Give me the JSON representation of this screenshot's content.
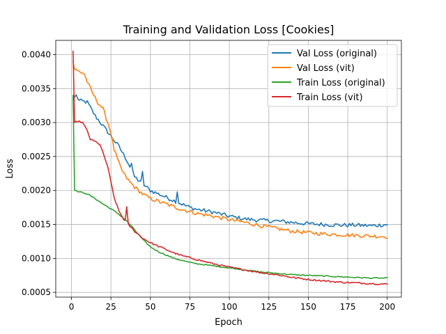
{
  "chart_data": {
    "type": "line",
    "title": "Training and Validation Loss [Cookies]",
    "xlabel": "Epoch",
    "ylabel": "Loss",
    "xlim": [
      -9.95,
      208.95
    ],
    "ylim": [
      0.00043,
      0.00421
    ],
    "x_ticks": [
      0,
      25,
      50,
      75,
      100,
      125,
      150,
      175,
      200
    ],
    "x_tick_labels": [
      "0",
      "25",
      "50",
      "75",
      "100",
      "125",
      "150",
      "175",
      "200"
    ],
    "y_ticks": [
      0.0005,
      0.001,
      0.0015,
      0.002,
      0.0025,
      0.003,
      0.0035,
      0.004
    ],
    "y_tick_labels": [
      "0.0005",
      "0.0010",
      "0.0015",
      "0.0020",
      "0.0025",
      "0.0030",
      "0.0035",
      "0.0040"
    ],
    "grid": true,
    "legend_position": "top-right",
    "x_range": [
      1,
      200
    ],
    "series": [
      {
        "name": "Val Loss (original)",
        "color": "#1f77b4",
        "anchors": [
          [
            1,
            0.00335
          ],
          [
            3,
            0.0034
          ],
          [
            5,
            0.00332
          ],
          [
            10,
            0.0033
          ],
          [
            15,
            0.0031
          ],
          [
            20,
            0.00295
          ],
          [
            25,
            0.0028
          ],
          [
            30,
            0.00265
          ],
          [
            35,
            0.00245
          ],
          [
            40,
            0.0022
          ],
          [
            45,
            0.0021
          ],
          [
            50,
            0.002
          ],
          [
            55,
            0.00195
          ],
          [
            60,
            0.0019
          ],
          [
            65,
            0.00185
          ],
          [
            70,
            0.0018
          ],
          [
            75,
            0.00175
          ],
          [
            80,
            0.00172
          ],
          [
            90,
            0.00168
          ],
          [
            100,
            0.00162
          ],
          [
            110,
            0.00158
          ],
          [
            120,
            0.00156
          ],
          [
            130,
            0.00155
          ],
          [
            140,
            0.00153
          ],
          [
            150,
            0.00151
          ],
          [
            160,
            0.0015
          ],
          [
            170,
            0.00149
          ],
          [
            180,
            0.00149
          ],
          [
            190,
            0.00148
          ],
          [
            200,
            0.0015
          ]
        ],
        "noise": 3e-05,
        "spikes": [
          [
            67,
            0.00198
          ],
          [
            45,
            0.00228
          ],
          [
            38,
            0.0024
          ]
        ]
      },
      {
        "name": "Val Loss (vit)",
        "color": "#ff7f0e",
        "anchors": [
          [
            1,
            0.0039
          ],
          [
            2,
            0.00378
          ],
          [
            5,
            0.00375
          ],
          [
            8,
            0.00372
          ],
          [
            10,
            0.0036
          ],
          [
            13,
            0.00345
          ],
          [
            16,
            0.00332
          ],
          [
            20,
            0.0032
          ],
          [
            23,
            0.003
          ],
          [
            25,
            0.00285
          ],
          [
            27,
            0.0026
          ],
          [
            30,
            0.0024
          ],
          [
            33,
            0.00225
          ],
          [
            36,
            0.00215
          ],
          [
            40,
            0.00205
          ],
          [
            45,
            0.00195
          ],
          [
            50,
            0.00188
          ],
          [
            60,
            0.0018
          ],
          [
            70,
            0.00172
          ],
          [
            80,
            0.00166
          ],
          [
            90,
            0.00162
          ],
          [
            100,
            0.00157
          ],
          [
            110,
            0.00153
          ],
          [
            120,
            0.00148
          ],
          [
            130,
            0.00144
          ],
          [
            140,
            0.0014
          ],
          [
            150,
            0.00138
          ],
          [
            160,
            0.00136
          ],
          [
            170,
            0.00135
          ],
          [
            180,
            0.00134
          ],
          [
            190,
            0.00133
          ],
          [
            200,
            0.00132
          ]
        ],
        "noise": 2.8e-05,
        "spikes": []
      },
      {
        "name": "Train Loss (original)",
        "color": "#2ca02c",
        "anchors": [
          [
            1,
            0.0034
          ],
          [
            2,
            0.002
          ],
          [
            5,
            0.00198
          ],
          [
            10,
            0.00195
          ],
          [
            15,
            0.00188
          ],
          [
            20,
            0.0018
          ],
          [
            25,
            0.00173
          ],
          [
            30,
            0.00165
          ],
          [
            35,
            0.00155
          ],
          [
            40,
            0.00142
          ],
          [
            45,
            0.00128
          ],
          [
            50,
            0.00117
          ],
          [
            55,
            0.0011
          ],
          [
            60,
            0.00105
          ],
          [
            65,
            0.001
          ],
          [
            70,
            0.00097
          ],
          [
            75,
            0.00094
          ],
          [
            80,
            0.00092
          ],
          [
            90,
            0.00089
          ],
          [
            100,
            0.00086
          ],
          [
            110,
            0.00083
          ],
          [
            120,
            0.0008
          ],
          [
            130,
            0.00078
          ],
          [
            140,
            0.00076
          ],
          [
            150,
            0.00075
          ],
          [
            160,
            0.00074
          ],
          [
            170,
            0.00073
          ],
          [
            180,
            0.00072
          ],
          [
            190,
            0.00071
          ],
          [
            200,
            0.00071
          ]
        ],
        "noise": 8e-06,
        "spikes": []
      },
      {
        "name": "Train Loss (vit)",
        "color": "#d62728",
        "anchors": [
          [
            1,
            0.00405
          ],
          [
            2,
            0.003
          ],
          [
            4,
            0.00302
          ],
          [
            7,
            0.003
          ],
          [
            10,
            0.00288
          ],
          [
            12,
            0.00275
          ],
          [
            15,
            0.00272
          ],
          [
            18,
            0.00268
          ],
          [
            20,
            0.00255
          ],
          [
            23,
            0.00235
          ],
          [
            25,
            0.00212
          ],
          [
            27,
            0.0019
          ],
          [
            30,
            0.0017
          ],
          [
            33,
            0.00158
          ],
          [
            36,
            0.0015
          ],
          [
            40,
            0.0014
          ],
          [
            45,
            0.0013
          ],
          [
            50,
            0.00123
          ],
          [
            55,
            0.00118
          ],
          [
            60,
            0.00113
          ],
          [
            65,
            0.00108
          ],
          [
            70,
            0.00104
          ],
          [
            80,
            0.00098
          ],
          [
            90,
            0.00092
          ],
          [
            100,
            0.00087
          ],
          [
            110,
            0.00083
          ],
          [
            120,
            0.00079
          ],
          [
            130,
            0.00076
          ],
          [
            140,
            0.00072
          ],
          [
            150,
            0.00069
          ],
          [
            160,
            0.00067
          ],
          [
            170,
            0.00065
          ],
          [
            180,
            0.00064
          ],
          [
            190,
            0.00063
          ],
          [
            200,
            0.00062
          ]
        ],
        "noise": 1.2e-05,
        "spikes": [
          [
            35,
            0.00176
          ]
        ]
      }
    ]
  }
}
